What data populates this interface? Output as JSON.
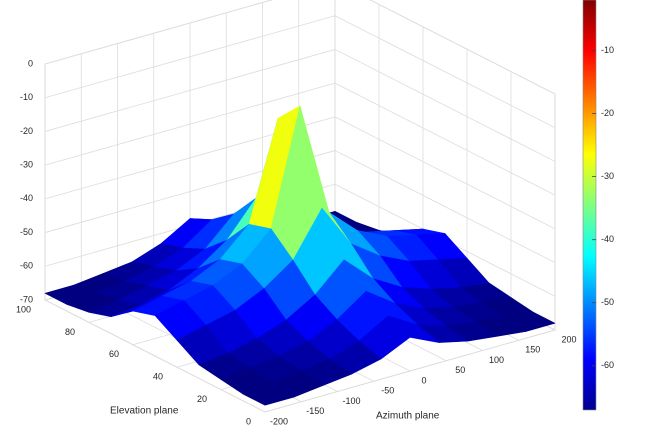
{
  "chart_data": {
    "type": "surface",
    "xlabel": "Azimuth plane",
    "ylabel": "Elevation plane",
    "x": [
      -200,
      -160,
      -120,
      -80,
      -40,
      0,
      40,
      80,
      120,
      160,
      200
    ],
    "y": [
      0,
      10,
      20,
      30,
      40,
      50,
      60,
      70,
      80,
      90,
      100
    ],
    "z": [
      [
        -68,
        -68,
        -67,
        -66,
        -64,
        -60,
        -64,
        -66,
        -67,
        -68,
        -68
      ],
      [
        -68,
        -67,
        -66,
        -65,
        -62,
        -57,
        -62,
        -65,
        -66,
        -67,
        -68
      ],
      [
        -67,
        -66,
        -65,
        -63,
        -59,
        -53,
        -59,
        -63,
        -65,
        -66,
        -67
      ],
      [
        -66,
        -65,
        -63,
        -60,
        -55,
        -47,
        -55,
        -60,
        -63,
        -65,
        -66
      ],
      [
        -62,
        -60,
        -58,
        -54,
        -48,
        -35,
        -48,
        -54,
        -58,
        -60,
        -62
      ],
      [
        -58,
        -56,
        -54,
        -50,
        -42,
        -8,
        -42,
        -50,
        -54,
        -56,
        -58
      ],
      [
        -60,
        -58,
        -56,
        -52,
        -44,
        -15,
        -44,
        -52,
        -56,
        -58,
        -60
      ],
      [
        -65,
        -64,
        -62,
        -58,
        -52,
        -42,
        -52,
        -58,
        -62,
        -64,
        -65
      ],
      [
        -67,
        -66,
        -64,
        -62,
        -58,
        -50,
        -58,
        -62,
        -64,
        -66,
        -67
      ],
      [
        -68,
        -67,
        -66,
        -64,
        -61,
        -55,
        -61,
        -64,
        -66,
        -67,
        -68
      ],
      [
        -68,
        -68,
        -67,
        -66,
        -63,
        -58,
        -63,
        -66,
        -67,
        -68,
        -68
      ]
    ],
    "xlim": [
      -200,
      200
    ],
    "xticks": [
      -200,
      -150,
      -100,
      -50,
      0,
      50,
      100,
      150,
      200
    ],
    "ylim": [
      0,
      100
    ],
    "yticks": [
      0,
      20,
      40,
      60,
      80,
      100
    ],
    "zlim": [
      -70,
      0
    ],
    "zticks": [
      -70,
      -60,
      -50,
      -40,
      -30,
      -20,
      -10,
      0
    ],
    "colormap": "jet",
    "clim": [
      -67,
      -2
    ],
    "colorbar_ticks": [
      -60,
      -50,
      -40,
      -30,
      -20,
      -10
    ],
    "grid": true
  }
}
